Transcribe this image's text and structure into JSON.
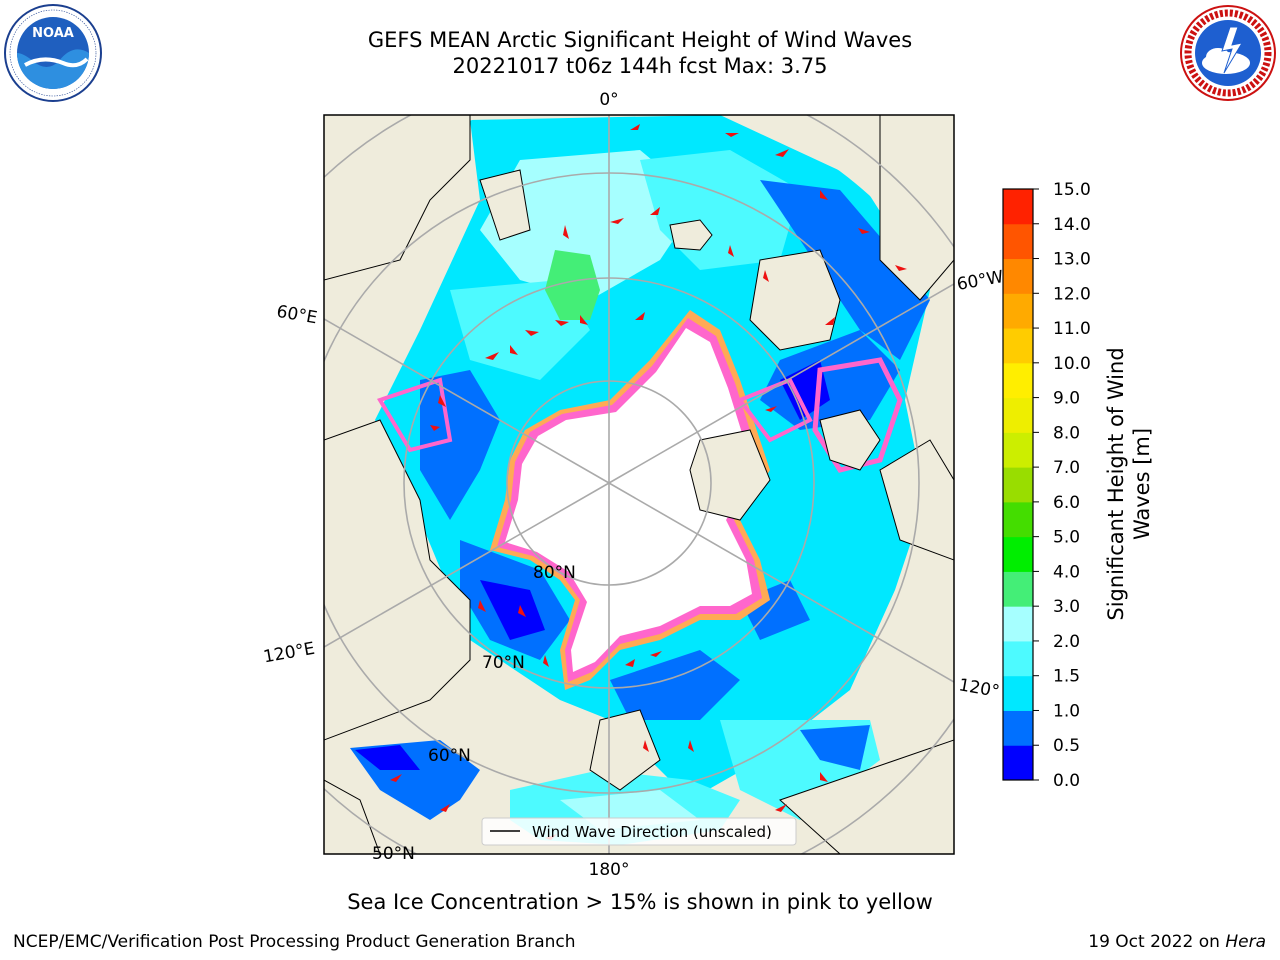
{
  "header": {
    "title_line1": "GEFS MEAN Arctic Significant Height of Wind Waves",
    "title_line2": "20221017 t06z 144h fcst   Max: 3.75"
  },
  "logos": {
    "noaa": {
      "text": "NOAA",
      "ring_text": "NATIONAL OCEANIC AND ATMOSPHERIC ADMINISTRATION · U.S. DEPARTMENT OF COMMERCE"
    },
    "nws": {
      "ring_text": "NATIONAL WEATHER SERVICE"
    }
  },
  "map": {
    "meridian_labels": {
      "top": "0°",
      "bottom": "180°",
      "left_upper": "60°E",
      "left_lower": "120°E",
      "right_upper": "60°W",
      "right_lower": "120°"
    },
    "parallel_labels": {
      "p80": "80°N",
      "p70": "70°N",
      "p60": "60°N",
      "p50": "50°N"
    },
    "legend_label": "Wind Wave Direction (unscaled)",
    "colors": {
      "land": "#efecdc",
      "ice": "#ffffff",
      "ice_edge": [
        "#ff66cc",
        "#ffaa55",
        "#ffdd66"
      ],
      "arrow": "#ee1111",
      "grid": "#aaaaaa"
    }
  },
  "colorbar": {
    "label_line1": "Significant Height of Wind",
    "label_line2": "Waves [m]",
    "ticks": [
      "0.0",
      "0.5",
      "1.0",
      "1.5",
      "2.0",
      "3.0",
      "4.0",
      "5.0",
      "6.0",
      "7.0",
      "8.0",
      "9.0",
      "10.0",
      "11.0",
      "12.0",
      "13.0",
      "14.0",
      "15.0"
    ],
    "colors": [
      "#0000ff",
      "#0070ff",
      "#00e8ff",
      "#4dfaff",
      "#a6ffff",
      "#44ee77",
      "#00ee00",
      "#44dd00",
      "#99dd00",
      "#ccee00",
      "#eeee00",
      "#ffee00",
      "#ffcc00",
      "#ffaa00",
      "#ff8800",
      "#ff5500",
      "#ff2200"
    ]
  },
  "notes": {
    "ice": "Sea Ice Concentration > 15% is shown in pink to yellow"
  },
  "footer": {
    "left": "NCEP/EMC/Verification Post Processing Product Generation Branch",
    "right_date": "19 Oct 2022 on",
    "right_host": "Hera"
  }
}
